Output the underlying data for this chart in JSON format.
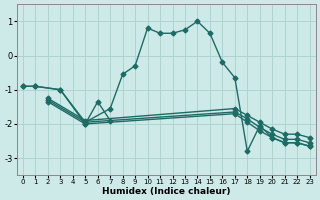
{
  "xlabel": "Humidex (Indice chaleur)",
  "xlim": [
    -0.5,
    23.5
  ],
  "ylim": [
    -3.5,
    1.5
  ],
  "xticks": [
    0,
    1,
    2,
    3,
    4,
    5,
    6,
    7,
    8,
    9,
    10,
    11,
    12,
    13,
    14,
    15,
    16,
    17,
    18,
    19,
    20,
    21,
    22,
    23
  ],
  "yticks": [
    -3,
    -2,
    -1,
    0,
    1
  ],
  "background_color": "#ceeae8",
  "grid_color": "#aed4d0",
  "line_color": "#1e6b65",
  "linewidth": 1.0,
  "markersize": 2.5,
  "line1_x": [
    0,
    1,
    3,
    5,
    7,
    8,
    9,
    10,
    11,
    12,
    13,
    14,
    15,
    16,
    17,
    18,
    19,
    20,
    21,
    22,
    23
  ],
  "line1_y": [
    -0.9,
    -0.9,
    -1.0,
    -1.95,
    -1.55,
    -0.55,
    -0.3,
    0.8,
    0.65,
    0.65,
    0.75,
    1.0,
    0.65,
    -0.2,
    -0.65,
    -2.8,
    -2.05,
    -2.4,
    -2.55,
    -2.55,
    -2.65
  ],
  "line2_x": [
    0,
    1,
    3,
    5,
    6,
    7
  ],
  "line2_y": [
    -0.9,
    -0.9,
    -1.0,
    -2.0,
    -1.35,
    -1.9
  ],
  "line3_x": [
    2,
    5,
    17,
    18,
    19,
    20,
    21,
    22,
    23
  ],
  "line3_y": [
    -1.25,
    -1.9,
    -1.55,
    -1.75,
    -1.95,
    -2.15,
    -2.3,
    -2.3,
    -2.4
  ],
  "line4_x": [
    2,
    5,
    17,
    18,
    19,
    20,
    21,
    22,
    23
  ],
  "line4_y": [
    -1.3,
    -1.95,
    -1.65,
    -1.85,
    -2.1,
    -2.3,
    -2.45,
    -2.45,
    -2.55
  ],
  "line5_x": [
    2,
    5,
    17,
    18,
    19,
    20,
    21,
    22,
    23
  ],
  "line5_y": [
    -1.35,
    -2.0,
    -1.7,
    -1.95,
    -2.2,
    -2.4,
    -2.55,
    -2.55,
    -2.65
  ]
}
